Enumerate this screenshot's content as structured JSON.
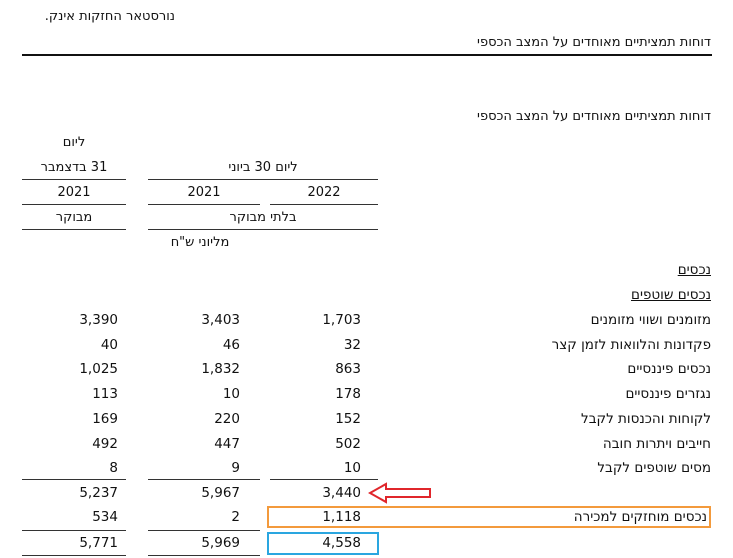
{
  "header": {
    "company": "נורסטאר החזקות אינק.",
    "title": "דוחות תמציתיים מאוחדים על המצב הכספי",
    "subtitle": "דוחות תמציתיים מאוחדים על המצב הכספי"
  },
  "columns": {
    "dec_as_of": "ליום",
    "dec_date": "31 בדצמבר",
    "jun_date": "ליום 30 ביוני",
    "year_2021_dec": "2021",
    "year_2021_jun": "2021",
    "year_2022_jun": "2022",
    "audited": "מבוקר",
    "unaudited": "בלתי מבוקר",
    "unit": "מליוני ש\"ח"
  },
  "sections": {
    "assets": "נכסים",
    "current_assets": "נכסים שוטפים"
  },
  "rows": [
    {
      "label": "מזומנים ושווי מזומנים",
      "v2022": "1,703",
      "v2021": "3,403",
      "vdec": "3,390"
    },
    {
      "label": "פקדונות והלוואות לזמן קצר",
      "v2022": "32",
      "v2021": "46",
      "vdec": "40"
    },
    {
      "label": "נכסים פיננסיים",
      "v2022": "863",
      "v2021": "1,832",
      "vdec": "1,025"
    },
    {
      "label": "נגזרים פיננסיים",
      "v2022": "178",
      "v2021": "10",
      "vdec": "113"
    },
    {
      "label": "לקוחות והכנסות לקבל",
      "v2022": "152",
      "v2021": "220",
      "vdec": "169"
    },
    {
      "label": "חייבים ויתרות חובה",
      "v2022": "502",
      "v2021": "447",
      "vdec": "492"
    },
    {
      "label": "מסים שוטפים לקבל",
      "v2022": "10",
      "v2021": "9",
      "vdec": "8"
    }
  ],
  "subtotal": {
    "v2022": "3,440",
    "v2021": "5,967",
    "vdec": "5,237"
  },
  "held_for_sale": {
    "label": "נכסים מוחזקים למכירה",
    "v2022": "1,118",
    "v2021": "2",
    "vdec": "534"
  },
  "total": {
    "v2022": "4,558",
    "v2021": "5,969",
    "vdec": "5,771"
  },
  "annotation_colors": {
    "arrow": "#e0262b",
    "orange_box": "#f39a3c",
    "blue_box": "#2aa6e0"
  }
}
